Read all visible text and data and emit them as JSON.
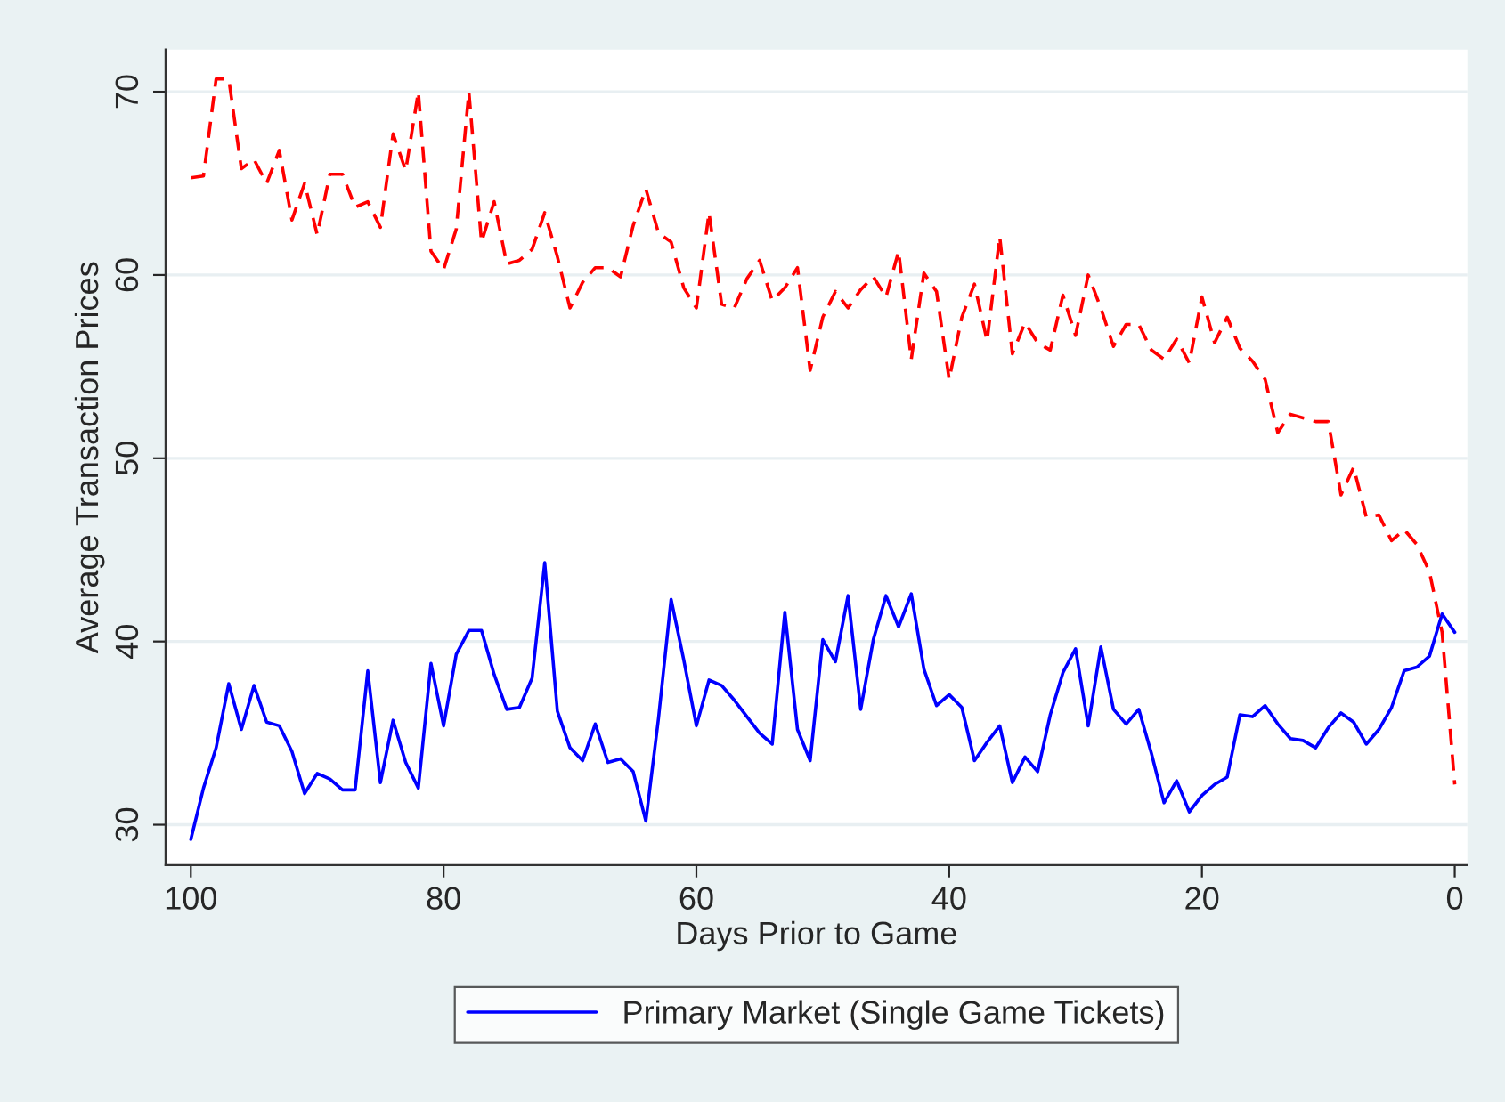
{
  "chart_data": {
    "type": "line",
    "xlabel": "Days Prior to Game",
    "ylabel": "Average Transaction Prices",
    "x": [
      100,
      99,
      98,
      97,
      96,
      95,
      94,
      93,
      92,
      91,
      90,
      89,
      88,
      87,
      86,
      85,
      84,
      83,
      82,
      81,
      80,
      79,
      78,
      77,
      76,
      75,
      74,
      73,
      72,
      71,
      70,
      69,
      68,
      67,
      66,
      65,
      64,
      63,
      62,
      61,
      60,
      59,
      58,
      57,
      56,
      55,
      54,
      53,
      52,
      51,
      50,
      49,
      48,
      47,
      46,
      45,
      44,
      43,
      42,
      41,
      40,
      39,
      38,
      37,
      36,
      35,
      34,
      33,
      32,
      31,
      30,
      29,
      28,
      27,
      26,
      25,
      24,
      23,
      22,
      21,
      20,
      19,
      18,
      17,
      16,
      15,
      14,
      13,
      12,
      11,
      10,
      9,
      8,
      7,
      6,
      5,
      4,
      3,
      2,
      1,
      0
    ],
    "series": [
      {
        "name": "Primary Market (Single Game Tickets)",
        "color": "#0000ff",
        "line_style": "solid",
        "values": [
          29.2,
          32,
          34.2,
          37.7,
          35.2,
          37.6,
          35.6,
          35.4,
          34,
          31.7,
          32.8,
          32.5,
          31.9,
          31.9,
          38.4,
          32.3,
          35.7,
          33.4,
          32,
          38.8,
          35.4,
          39.3,
          40.6,
          40.6,
          38.2,
          36.3,
          36.4,
          38,
          44.3,
          36.2,
          34.2,
          33.5,
          35.5,
          33.4,
          33.6,
          32.9,
          30.2,
          35.8,
          42.3,
          39,
          35.4,
          37.9,
          37.6,
          36.8,
          35.9,
          35,
          34.4,
          41.6,
          35.2,
          33.5,
          40.1,
          38.9,
          42.5,
          36.3,
          40.1,
          42.5,
          40.8,
          42.6,
          38.5,
          36.5,
          37.1,
          36.4,
          33.5,
          34.5,
          35.4,
          32.3,
          33.7,
          32.9,
          36,
          38.3,
          39.6,
          35.4,
          39.7,
          36.3,
          35.5,
          36.3,
          33.9,
          31.2,
          32.4,
          30.7,
          31.6,
          32.2,
          32.6,
          36,
          35.9,
          36.5,
          35.5,
          34.7,
          34.6,
          34.2,
          35.3,
          36.1,
          35.6,
          34.4,
          35.2,
          36.4,
          38.4,
          38.6,
          39.2,
          41.5,
          40.5
        ]
      },
      {
        "color": "#ff0000",
        "line_style": "dashed",
        "values": [
          65.3,
          65.4,
          70.7,
          70.7,
          65.8,
          66.3,
          65,
          66.8,
          63,
          65,
          62.2,
          65.5,
          65.5,
          63.7,
          64,
          62.6,
          67.7,
          65.7,
          70,
          61.3,
          60.3,
          62.5,
          70,
          61.8,
          64,
          60.6,
          60.8,
          61.4,
          63.4,
          61,
          58.2,
          59.6,
          60.4,
          60.4,
          59.9,
          62.7,
          64.7,
          62.3,
          61.8,
          59.3,
          58.2,
          63.4,
          58.4,
          58.2,
          59.8,
          60.8,
          58.6,
          59.3,
          60.4,
          54.8,
          57.7,
          59.1,
          58.2,
          59.2,
          59.9,
          58.8,
          61.3,
          55.4,
          60.1,
          59.1,
          54.3,
          57.7,
          59.5,
          56.4,
          62.1,
          55.7,
          57.4,
          56.3,
          55.9,
          58.9,
          56.7,
          60,
          58.2,
          56.1,
          57.3,
          57.3,
          55.9,
          55.4,
          56.5,
          55.2,
          58.8,
          56.3,
          57.7,
          56,
          55.3,
          54.3,
          51.4,
          52.4,
          52.2,
          52,
          52,
          48,
          49.5,
          46.8,
          46.9,
          45.5,
          46.1,
          45.3,
          43.8,
          40.5,
          32.2
        ]
      }
    ],
    "xlim": [
      102,
      -1
    ],
    "ylim": [
      27.8,
      72.3
    ],
    "xticks": [
      100,
      80,
      60,
      40,
      20,
      0
    ],
    "yticks": [
      30,
      40,
      50,
      60,
      70
    ],
    "grid": "y",
    "legend": "bottom"
  }
}
